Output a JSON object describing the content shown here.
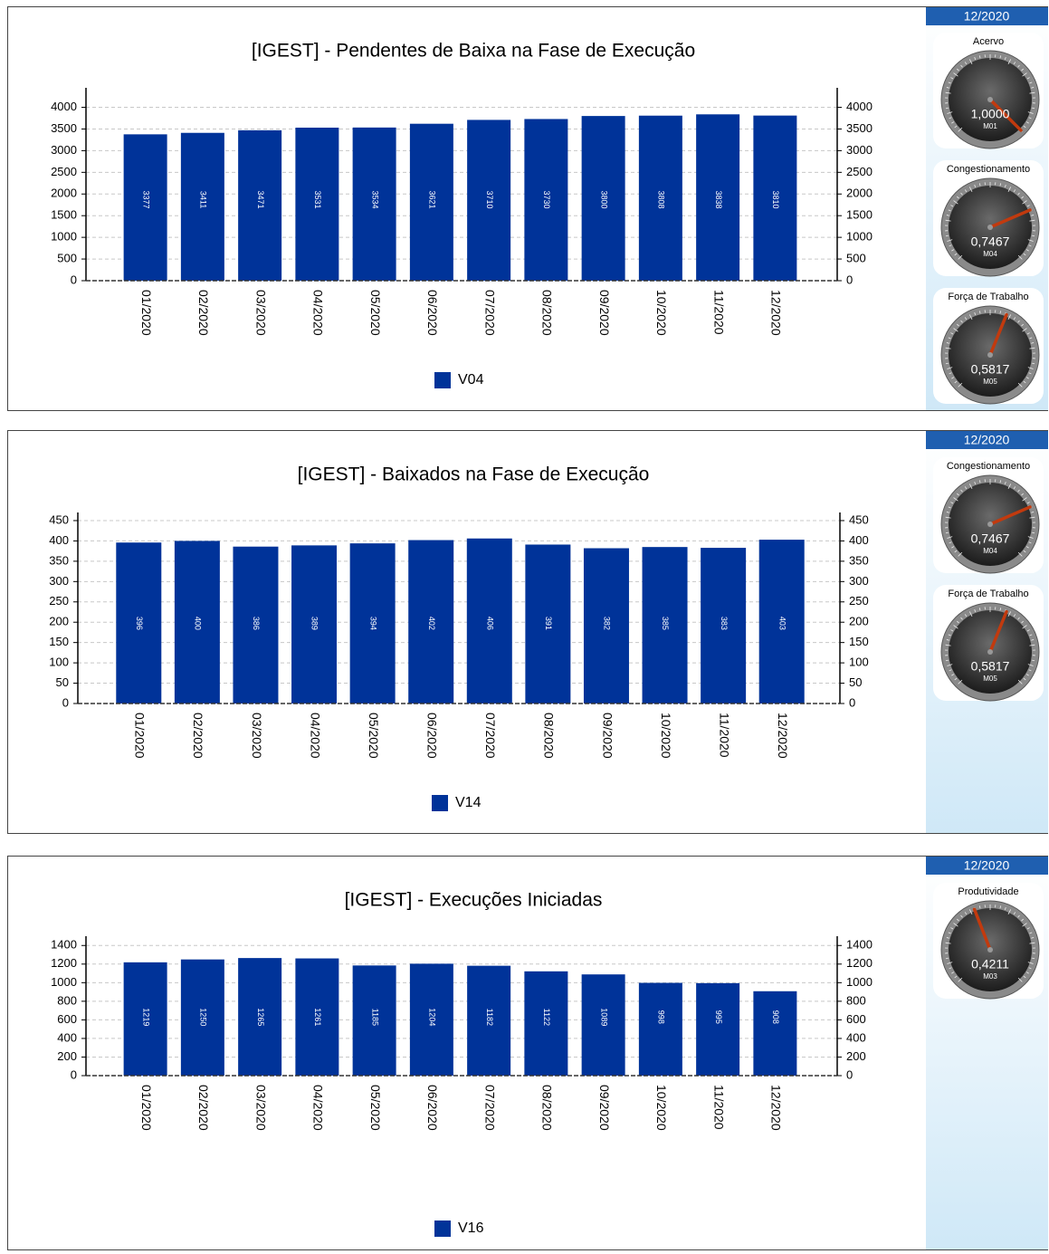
{
  "chart_data": [
    {
      "type": "bar",
      "title": "[IGEST]  - Pendentes de Baixa na Fase de Execução",
      "categories": [
        "01/2020",
        "02/2020",
        "03/2020",
        "04/2020",
        "05/2020",
        "06/2020",
        "07/2020",
        "08/2020",
        "09/2020",
        "10/2020",
        "11/2020",
        "12/2020"
      ],
      "series": [
        {
          "name": "V04",
          "color": "#003399",
          "values": [
            3377,
            3411,
            3471,
            3531,
            3534,
            3621,
            3710,
            3730,
            3800,
            3808,
            3838,
            3810
          ]
        }
      ],
      "ylim": [
        0,
        4450
      ],
      "yticks": [
        0,
        500,
        1000,
        1500,
        2000,
        2500,
        3000,
        3500,
        4000
      ],
      "grid": true,
      "period": "12/2020",
      "gauge_lim": [
        0,
        1
      ],
      "gauges": [
        {
          "title": "Acervo",
          "value": 1.0,
          "value_label": "1,0000",
          "code": "M01"
        },
        {
          "title": "Congestionamento",
          "value": 0.7467,
          "value_label": "0,7467",
          "code": "M04"
        },
        {
          "title": "Força de Trabalho",
          "value": 0.5817,
          "value_label": "0,5817",
          "code": "M05"
        }
      ]
    },
    {
      "type": "bar",
      "title": "[IGEST]  - Baixados na Fase de Execução",
      "categories": [
        "01/2020",
        "02/2020",
        "03/2020",
        "04/2020",
        "05/2020",
        "06/2020",
        "07/2020",
        "08/2020",
        "09/2020",
        "10/2020",
        "11/2020",
        "12/2020"
      ],
      "series": [
        {
          "name": "V14",
          "color": "#003399",
          "values": [
            396,
            400,
            386,
            389,
            394,
            402,
            406,
            391,
            382,
            385,
            383,
            403
          ]
        }
      ],
      "ylim": [
        0,
        470
      ],
      "yticks": [
        0,
        50,
        100,
        150,
        200,
        250,
        300,
        350,
        400,
        450
      ],
      "grid": true,
      "period": "12/2020",
      "gauge_lim": [
        0,
        1
      ],
      "gauges": [
        {
          "title": "Congestionamento",
          "value": 0.7467,
          "value_label": "0,7467",
          "code": "M04"
        },
        {
          "title": "Força de Trabalho",
          "value": 0.5817,
          "value_label": "0,5817",
          "code": "M05"
        }
      ]
    },
    {
      "type": "bar",
      "title": "[IGEST]  - Execuções Iniciadas",
      "categories": [
        "01/2020",
        "02/2020",
        "03/2020",
        "04/2020",
        "05/2020",
        "06/2020",
        "07/2020",
        "08/2020",
        "09/2020",
        "10/2020",
        "11/2020",
        "12/2020"
      ],
      "series": [
        {
          "name": "V16",
          "color": "#003399",
          "values": [
            1219,
            1250,
            1265,
            1261,
            1185,
            1204,
            1182,
            1122,
            1089,
            998,
            995,
            908
          ]
        }
      ],
      "ylim": [
        0,
        1500
      ],
      "yticks": [
        0,
        200,
        400,
        600,
        800,
        1000,
        1200,
        1400
      ],
      "grid": true,
      "period": "12/2020",
      "gauge_lim": [
        0,
        1
      ],
      "gauges": [
        {
          "title": "Produtividade",
          "value": 0.4211,
          "value_label": "0,4211",
          "code": "M03"
        }
      ]
    }
  ]
}
